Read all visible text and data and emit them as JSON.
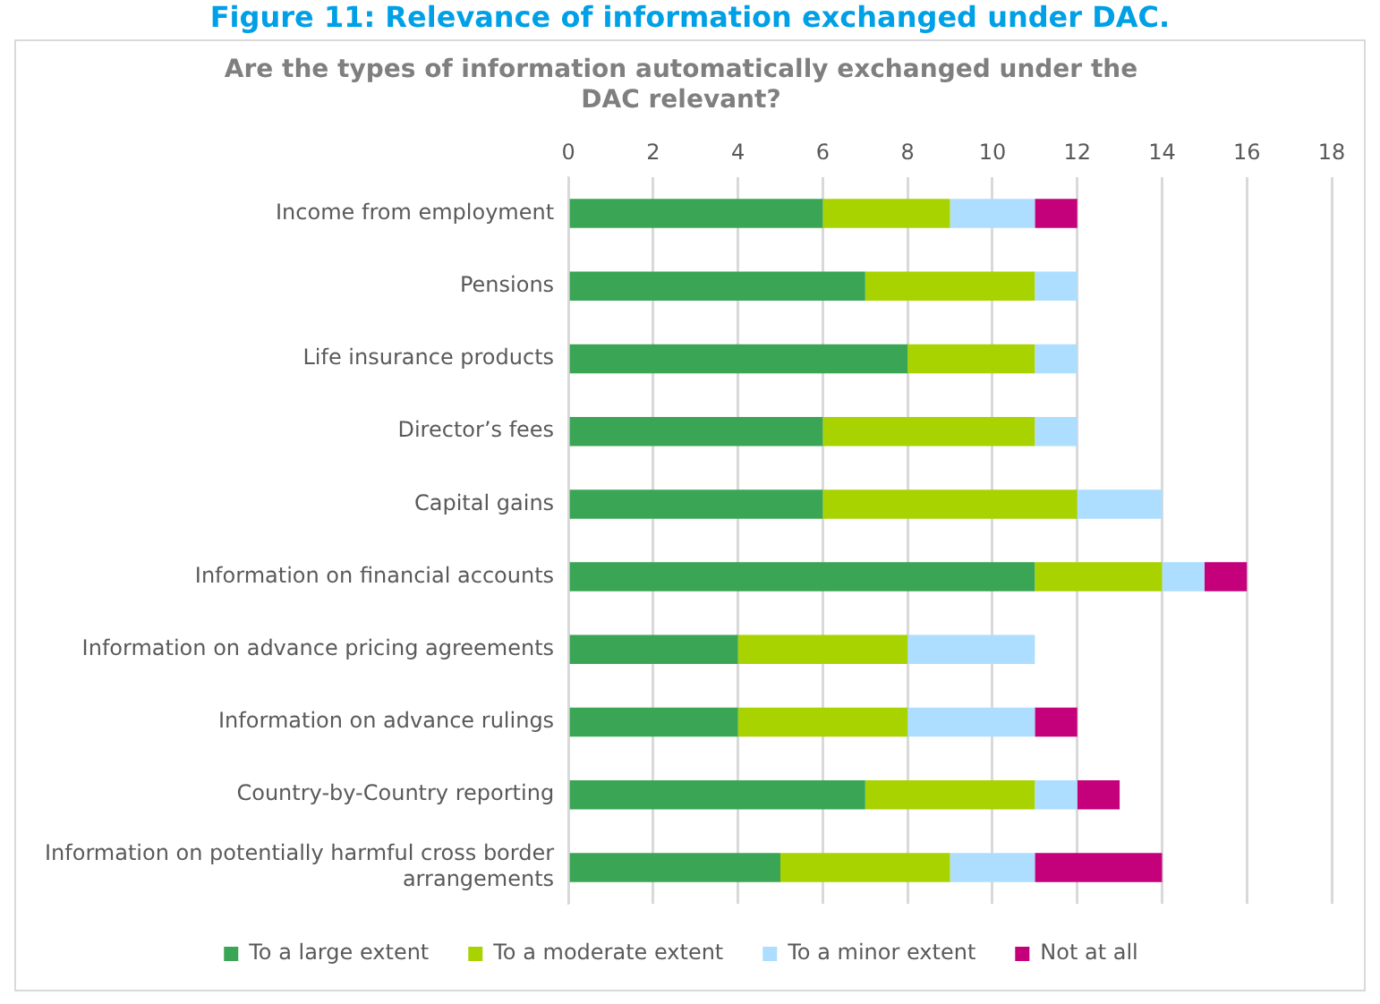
{
  "chart_data": {
    "type": "bar",
    "title": "Figure 11: Relevance of information exchanged under DAC.",
    "subtitle": "Are the types of information automatically exchanged under the DAC relevant?",
    "orientation": "horizontal",
    "stacked": true,
    "categories": [
      "Income from employment",
      "Pensions",
      "Life insurance products",
      "Director’s fees",
      "Capital gains",
      "Information on financial accounts",
      "Information on advance pricing agreements",
      "Information on advance rulings",
      "Country-by-Country reporting",
      "Information on potentially harmful cross border arrangements"
    ],
    "series": [
      {
        "name": "To a large extent",
        "color": "#3aa655",
        "values": [
          6,
          7,
          8,
          6,
          6,
          11,
          4,
          4,
          7,
          5
        ]
      },
      {
        "name": "To a moderate extent",
        "color": "#a8d300",
        "values": [
          3,
          4,
          3,
          5,
          6,
          3,
          4,
          4,
          4,
          4
        ]
      },
      {
        "name": "To a minor extent",
        "color": "#addeff",
        "values": [
          2,
          1,
          1,
          1,
          2,
          1,
          3,
          3,
          1,
          2
        ]
      },
      {
        "name": "Not at all",
        "color": "#c4007a",
        "values": [
          1,
          0,
          0,
          0,
          0,
          1,
          0,
          1,
          1,
          3
        ]
      }
    ],
    "xlim": [
      0,
      18
    ],
    "xticks": [
      0,
      2,
      4,
      6,
      8,
      10,
      12,
      14,
      16,
      18
    ],
    "grid": "x",
    "legend": "bottom"
  }
}
